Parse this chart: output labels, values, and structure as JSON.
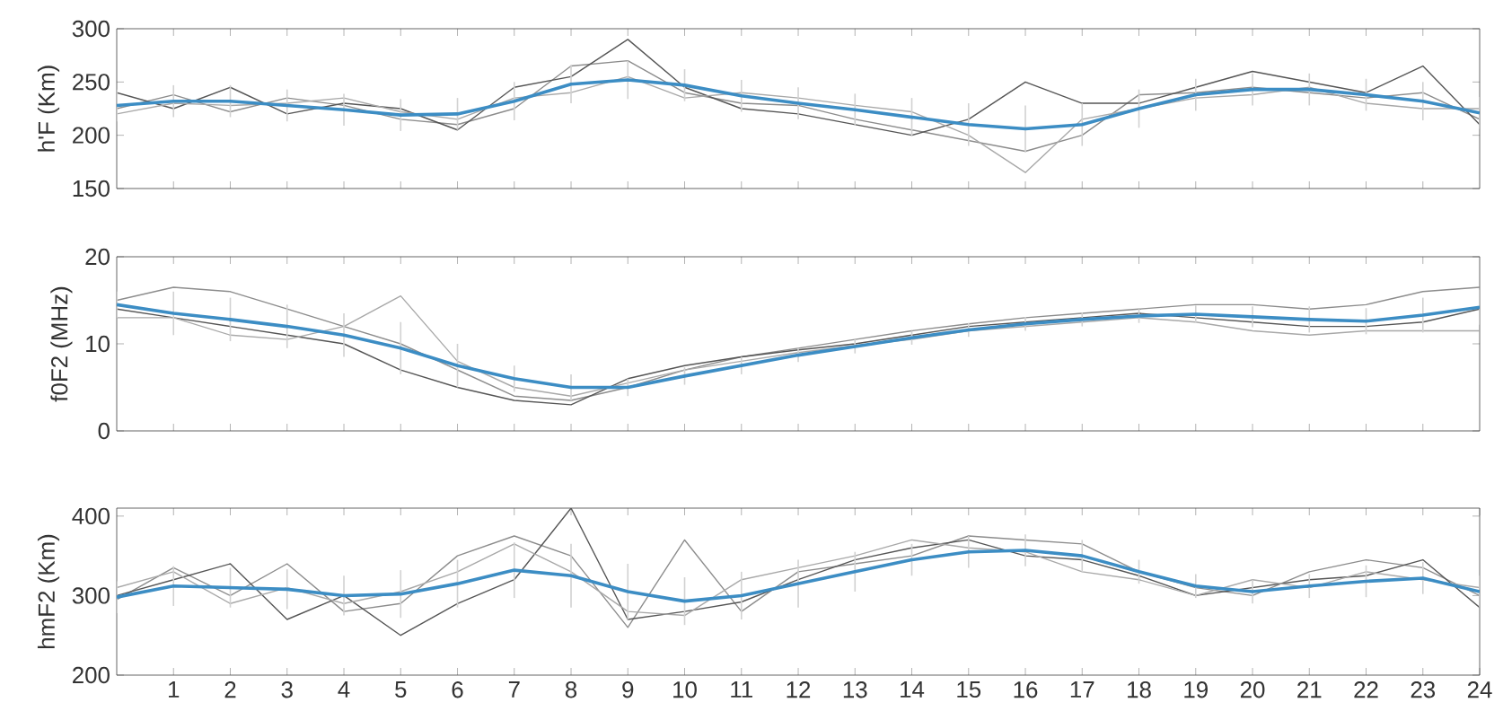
{
  "chart_data": [
    {
      "type": "line",
      "ylabel": "h'F (Km)",
      "x": [
        0,
        1,
        2,
        3,
        4,
        5,
        6,
        7,
        8,
        9,
        10,
        11,
        12,
        13,
        14,
        15,
        16,
        17,
        18,
        19,
        20,
        21,
        22,
        23,
        24
      ],
      "xlim": [
        0,
        24
      ],
      "ylim": [
        150,
        300
      ],
      "yticks": [
        150,
        200,
        250,
        300
      ],
      "tick_labels": "y",
      "series": [
        {
          "color": "#8c8c8c",
          "values": [
            225,
            238,
            222,
            235,
            228,
            215,
            210,
            225,
            265,
            270,
            240,
            230,
            228,
            215,
            205,
            195,
            185,
            200,
            238,
            240,
            245,
            240,
            235,
            240,
            215
          ]
        },
        {
          "color": "#555555",
          "values": [
            240,
            225,
            245,
            220,
            230,
            225,
            205,
            245,
            255,
            290,
            245,
            225,
            220,
            210,
            200,
            215,
            250,
            230,
            230,
            245,
            260,
            250,
            240,
            265,
            210
          ]
        },
        {
          "color": "#a8a8a8",
          "values": [
            220,
            230,
            228,
            230,
            235,
            222,
            215,
            235,
            240,
            255,
            235,
            240,
            235,
            228,
            222,
            200,
            165,
            215,
            225,
            235,
            238,
            245,
            230,
            225,
            225
          ]
        },
        {
          "color": "#3c8dc4",
          "values": [
            228,
            232,
            232,
            228,
            224,
            219,
            220,
            232,
            248,
            252,
            247,
            237,
            230,
            224,
            217,
            210,
            206,
            210,
            225,
            238,
            243,
            243,
            238,
            232,
            221
          ],
          "errors": [
            15,
            15,
            15,
            15,
            15,
            15,
            15,
            18,
            18,
            18,
            15,
            15,
            15,
            15,
            18,
            20,
            22,
            20,
            18,
            15,
            15,
            15,
            15,
            18,
            15
          ]
        }
      ]
    },
    {
      "type": "line",
      "ylabel": "f0F2 (MHz)",
      "x": [
        0,
        1,
        2,
        3,
        4,
        5,
        6,
        7,
        8,
        9,
        10,
        11,
        12,
        13,
        14,
        15,
        16,
        17,
        18,
        19,
        20,
        21,
        22,
        23,
        24
      ],
      "xlim": [
        0,
        24
      ],
      "ylim": [
        0,
        20
      ],
      "yticks": [
        0,
        10,
        20
      ],
      "tick_labels": "y",
      "series": [
        {
          "color": "#8c8c8c",
          "values": [
            15,
            16.5,
            16,
            14,
            12,
            10,
            7,
            4,
            3.5,
            5,
            7,
            8.5,
            9.5,
            10.5,
            11.5,
            12.3,
            13,
            13.5,
            14,
            14.5,
            14.5,
            14,
            14.5,
            16,
            16.5
          ]
        },
        {
          "color": "#555555",
          "values": [
            14,
            13,
            12,
            11,
            10,
            7,
            5,
            3.5,
            3,
            6,
            7.5,
            8.5,
            9.3,
            10,
            11,
            12,
            12.5,
            13,
            13.5,
            13,
            12.5,
            12,
            12,
            12.5,
            14
          ]
        },
        {
          "color": "#a8a8a8",
          "values": [
            13,
            13,
            11,
            10.5,
            12,
            15.5,
            8,
            5,
            4,
            5.5,
            7,
            8,
            9,
            9.8,
            10.5,
            11.5,
            12,
            12.5,
            13,
            12.5,
            11.5,
            11,
            11.5,
            11.5,
            11.5
          ]
        },
        {
          "color": "#3c8dc4",
          "values": [
            14.5,
            13.5,
            12.8,
            12,
            11,
            9.5,
            7.5,
            6,
            5,
            5,
            6.3,
            7.5,
            8.7,
            9.7,
            10.7,
            11.6,
            12.3,
            12.8,
            13.2,
            13.4,
            13.1,
            12.8,
            12.6,
            13.3,
            14.2
          ],
          "errors": [
            1.5,
            2.5,
            2.5,
            2.5,
            2.5,
            3,
            2.5,
            1.5,
            1.5,
            1,
            1,
            1,
            0.8,
            0.8,
            0.8,
            0.8,
            0.8,
            0.8,
            0.8,
            1,
            1.2,
            1.5,
            1.5,
            2,
            2
          ]
        }
      ]
    },
    {
      "type": "line",
      "ylabel": "hmF2 (Km)",
      "x": [
        0,
        1,
        2,
        3,
        4,
        5,
        6,
        7,
        8,
        9,
        10,
        11,
        12,
        13,
        14,
        15,
        16,
        17,
        18,
        19,
        20,
        21,
        22,
        23,
        24
      ],
      "xlim": [
        0,
        24
      ],
      "xticks": [
        1,
        2,
        3,
        4,
        5,
        6,
        7,
        8,
        9,
        10,
        11,
        12,
        13,
        14,
        15,
        16,
        17,
        18,
        19,
        20,
        21,
        22,
        23,
        24
      ],
      "ylim": [
        200,
        410
      ],
      "yticks": [
        200,
        300,
        400
      ],
      "series": [
        {
          "color": "#8c8c8c",
          "values": [
            295,
            335,
            300,
            340,
            280,
            290,
            350,
            375,
            350,
            260,
            370,
            280,
            330,
            340,
            350,
            375,
            370,
            365,
            330,
            310,
            300,
            330,
            345,
            335,
            300
          ]
        },
        {
          "color": "#555555",
          "values": [
            300,
            320,
            340,
            270,
            300,
            250,
            290,
            320,
            410,
            270,
            280,
            292,
            320,
            345,
            360,
            370,
            350,
            345,
            325,
            300,
            310,
            320,
            325,
            345,
            285
          ]
        },
        {
          "color": "#a8a8a8",
          "values": [
            310,
            330,
            290,
            310,
            290,
            305,
            330,
            365,
            330,
            280,
            275,
            320,
            335,
            350,
            370,
            360,
            355,
            330,
            320,
            300,
            320,
            310,
            330,
            320,
            310
          ]
        },
        {
          "color": "#3c8dc4",
          "values": [
            298,
            312,
            310,
            308,
            300,
            302,
            315,
            332,
            325,
            305,
            293,
            300,
            315,
            330,
            345,
            355,
            357,
            350,
            330,
            312,
            305,
            312,
            318,
            322,
            305
          ],
          "errors": [
            20,
            25,
            25,
            25,
            25,
            30,
            30,
            35,
            40,
            35,
            30,
            30,
            30,
            25,
            20,
            20,
            20,
            20,
            15,
            15,
            15,
            15,
            20,
            20,
            20
          ]
        }
      ]
    }
  ]
}
